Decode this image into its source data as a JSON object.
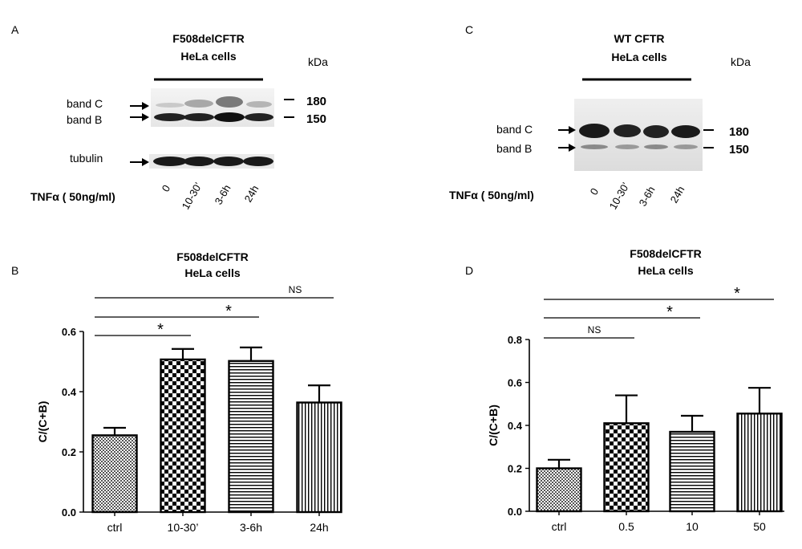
{
  "panels": {
    "A": {
      "letter": "A",
      "title_line1": "F508delCFTR",
      "title_line2": "HeLa cells",
      "kda_label": "kDa",
      "mw_high": "180",
      "mw_low": "150",
      "band_c_label": "band C",
      "band_b_label": "band B",
      "tubulin_label": "tubulin",
      "treatment_label": "TNFα ( 50ng/ml)",
      "lanes": [
        "0",
        "10-30’",
        "3-6h",
        "24h"
      ]
    },
    "C": {
      "letter": "C",
      "title_line1": "WT CFTR",
      "title_line2": "HeLa cells",
      "kda_label": "kDa",
      "mw_high": "180",
      "mw_low": "150",
      "band_c_label": "band C",
      "band_b_label": "band B",
      "treatment_label": "TNFα ( 50ng/ml)",
      "lanes": [
        "0",
        "10-30’",
        "3-6h",
        "24h"
      ]
    },
    "B": {
      "letter": "B"
    },
    "D": {
      "letter": "D"
    }
  },
  "chart_data": [
    {
      "panel": "B",
      "type": "bar",
      "title": "F508delCFTR HeLa cells",
      "title_line1": "F508delCFTR",
      "title_line2": "HeLa cells",
      "xlabel": "",
      "ylabel": "C/(C+B)",
      "ylim": [
        0,
        0.6
      ],
      "yticks": [
        "0.0",
        "0.2",
        "0.4",
        "0.6"
      ],
      "ytick_values": [
        0,
        0.2,
        0.4,
        0.6
      ],
      "categories": [
        "ctrl",
        "10-30’",
        "3-6h",
        "24h"
      ],
      "values": [
        0.255,
        0.507,
        0.502,
        0.364
      ],
      "errors": [
        0.025,
        0.035,
        0.045,
        0.057
      ],
      "patterns": [
        "crosshatch",
        "checker",
        "hlines",
        "vlines"
      ],
      "significance": [
        {
          "from": 0,
          "to": 1,
          "label": "*"
        },
        {
          "from": 0,
          "to": 2,
          "label": "*"
        },
        {
          "from": 0,
          "to": 3,
          "label": "NS"
        }
      ]
    },
    {
      "panel": "D",
      "type": "bar",
      "title": "F508delCFTR HeLa cells",
      "title_line1": "F508delCFTR",
      "title_line2": "HeLa cells",
      "xlabel": "",
      "ylabel": "C/(C+B)",
      "ylim": [
        0,
        0.8
      ],
      "yticks": [
        "0.0",
        "0.2",
        "0.4",
        "0.6",
        "0.8"
      ],
      "ytick_values": [
        0,
        0.2,
        0.4,
        0.6,
        0.8
      ],
      "categories": [
        "ctrl",
        "0.5",
        "10",
        "50"
      ],
      "values": [
        0.2,
        0.41,
        0.37,
        0.455
      ],
      "errors": [
        0.04,
        0.13,
        0.075,
        0.12
      ],
      "patterns": [
        "crosshatch",
        "checker",
        "hlines",
        "vlines"
      ],
      "significance": [
        {
          "from": 0,
          "to": 1,
          "label": "NS"
        },
        {
          "from": 0,
          "to": 2,
          "label": "*"
        },
        {
          "from": 0,
          "to": 3,
          "label": "*"
        }
      ]
    }
  ]
}
